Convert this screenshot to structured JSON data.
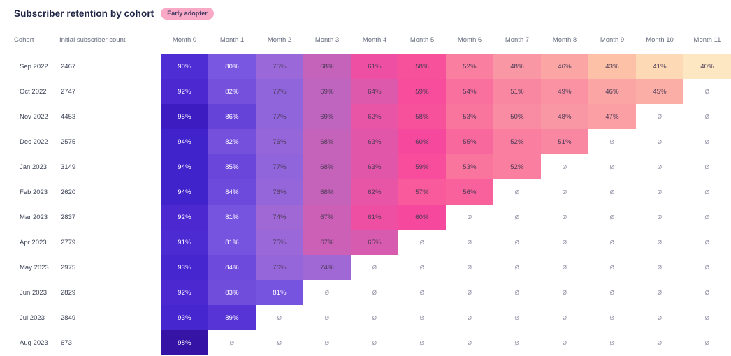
{
  "header": {
    "title": "Subscriber retention by cohort",
    "badge": "Early adopter"
  },
  "table_headers": {
    "cohort": "Cohort",
    "initial": "Initial subscriber count"
  },
  "colors": {
    "title_text": "#1F2547",
    "badge_bg": "#F9A8C5",
    "badge_text": "#413A63",
    "header_text": "#666C7E",
    "row_label_text": "#3C4257",
    "cell_text_dark": "#4B3A55",
    "cell_text_light": "#FFFFFF",
    "empty_text": "#8A8AA0",
    "white_text_threshold": 80,
    "scale": [
      {
        "value": 40,
        "color": "#FDE7C2"
      },
      {
        "value": 42,
        "color": "#FCCDA7"
      },
      {
        "value": 44,
        "color": "#FBB5A5"
      },
      {
        "value": 46,
        "color": "#FBA6A5"
      },
      {
        "value": 48,
        "color": "#FA97A4"
      },
      {
        "value": 51,
        "color": "#F987A2"
      },
      {
        "value": 53,
        "color": "#F9759E"
      },
      {
        "value": 55,
        "color": "#F8689C"
      },
      {
        "value": 57,
        "color": "#F85A9B"
      },
      {
        "value": 58,
        "color": "#F7519B"
      },
      {
        "value": 60,
        "color": "#F6499D"
      },
      {
        "value": 62,
        "color": "#E854A6"
      },
      {
        "value": 65,
        "color": "#D75BAE"
      },
      {
        "value": 68,
        "color": "#C563BA"
      },
      {
        "value": 70,
        "color": "#B866C6"
      },
      {
        "value": 75,
        "color": "#9A68D9"
      },
      {
        "value": 78,
        "color": "#8B63DC"
      },
      {
        "value": 80,
        "color": "#7A57E0"
      },
      {
        "value": 82,
        "color": "#7450DD"
      },
      {
        "value": 85,
        "color": "#6A47DA"
      },
      {
        "value": 86,
        "color": "#6542D8"
      },
      {
        "value": 89,
        "color": "#5634D6"
      },
      {
        "value": 90,
        "color": "#4F2DD4"
      },
      {
        "value": 92,
        "color": "#4B28D0"
      },
      {
        "value": 94,
        "color": "#4023CB"
      },
      {
        "value": 95,
        "color": "#3D1DC2"
      },
      {
        "value": 98,
        "color": "#3513A4"
      },
      {
        "value": 100,
        "color": "#2E0D9B"
      }
    ]
  },
  "chart_data": {
    "type": "heatmap",
    "title": "Subscriber retention by cohort",
    "empty_symbol": "Ø",
    "value_suffix": "%",
    "month_headers": [
      "Month 0",
      "Month 1",
      "Month 2",
      "Month 3",
      "Month 4",
      "Month 5",
      "Month 6",
      "Month 7",
      "Month 8",
      "Month 9",
      "Month 10",
      "Month 11"
    ],
    "rows": [
      {
        "cohort": "Sep 2022",
        "initial": "2467",
        "values": [
          90,
          80,
          75,
          68,
          61,
          58,
          52,
          48,
          46,
          43,
          41,
          40
        ]
      },
      {
        "cohort": "Oct 2022",
        "initial": "2747",
        "values": [
          92,
          82,
          77,
          69,
          64,
          59,
          54,
          51,
          49,
          46,
          45,
          null
        ]
      },
      {
        "cohort": "Nov 2022",
        "initial": "4453",
        "values": [
          95,
          86,
          77,
          69,
          62,
          58,
          53,
          50,
          48,
          47,
          null,
          null
        ]
      },
      {
        "cohort": "Dec 2022",
        "initial": "2575",
        "values": [
          94,
          82,
          76,
          68,
          63,
          60,
          55,
          52,
          51,
          null,
          null,
          null
        ]
      },
      {
        "cohort": "Jan 2023",
        "initial": "3149",
        "values": [
          94,
          85,
          77,
          68,
          63,
          59,
          53,
          52,
          null,
          null,
          null,
          null
        ]
      },
      {
        "cohort": "Feb 2023",
        "initial": "2620",
        "values": [
          94,
          84,
          76,
          68,
          62,
          57,
          56,
          null,
          null,
          null,
          null,
          null
        ]
      },
      {
        "cohort": "Mar 2023",
        "initial": "2837",
        "values": [
          92,
          81,
          74,
          67,
          61,
          60,
          null,
          null,
          null,
          null,
          null,
          null
        ]
      },
      {
        "cohort": "Apr 2023",
        "initial": "2779",
        "values": [
          91,
          81,
          75,
          67,
          65,
          null,
          null,
          null,
          null,
          null,
          null,
          null
        ]
      },
      {
        "cohort": "May 2023",
        "initial": "2975",
        "values": [
          93,
          84,
          76,
          74,
          null,
          null,
          null,
          null,
          null,
          null,
          null,
          null
        ]
      },
      {
        "cohort": "Jun 2023",
        "initial": "2829",
        "values": [
          92,
          83,
          81,
          null,
          null,
          null,
          null,
          null,
          null,
          null,
          null,
          null
        ]
      },
      {
        "cohort": "Jul 2023",
        "initial": "2849",
        "values": [
          93,
          89,
          null,
          null,
          null,
          null,
          null,
          null,
          null,
          null,
          null,
          null
        ]
      },
      {
        "cohort": "Aug 2023",
        "initial": "673",
        "values": [
          98,
          null,
          null,
          null,
          null,
          null,
          null,
          null,
          null,
          null,
          null,
          null
        ]
      }
    ]
  }
}
